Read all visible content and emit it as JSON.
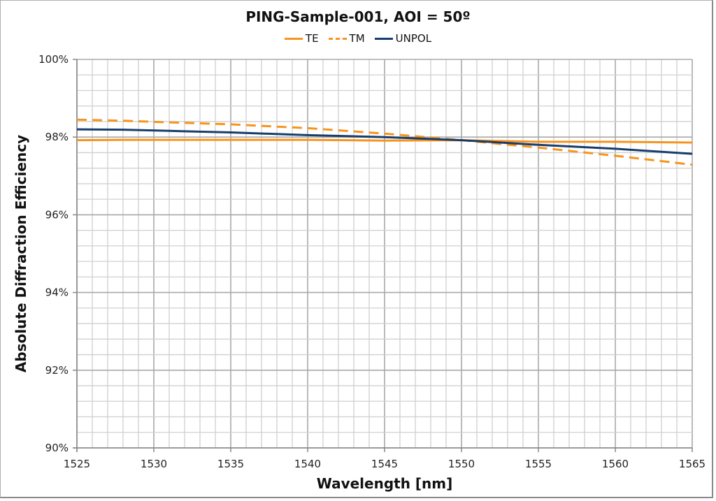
{
  "chart_data": {
    "type": "line",
    "title": "PING-Sample-001, AOI = 50º",
    "xlabel": "Wavelength [nm]",
    "ylabel": "Absolute Diffraction Efficiency",
    "xlim": [
      1525,
      1565
    ],
    "ylim": [
      90,
      100
    ],
    "x_ticks": [
      1525,
      1530,
      1535,
      1540,
      1545,
      1550,
      1555,
      1560,
      1565
    ],
    "y_ticks": [
      "90%",
      "92%",
      "94%",
      "96%",
      "98%",
      "100%"
    ],
    "grid": true,
    "legend_position": "top",
    "x": [
      1525,
      1528,
      1531,
      1535,
      1540,
      1545,
      1550,
      1555,
      1560,
      1565
    ],
    "series": [
      {
        "name": "TE",
        "color": "#F7941D",
        "style": "solid",
        "values": [
          97.92,
          97.93,
          97.93,
          97.93,
          97.93,
          97.91,
          97.92,
          97.88,
          97.88,
          97.86
        ]
      },
      {
        "name": "TM",
        "color": "#F7941D",
        "style": "dashed",
        "values": [
          98.45,
          98.42,
          98.38,
          98.33,
          98.23,
          98.09,
          97.92,
          97.73,
          97.52,
          97.29
        ]
      },
      {
        "name": "UNPOL",
        "color": "#173D6E",
        "style": "solid",
        "values": [
          98.2,
          98.19,
          98.16,
          98.12,
          98.05,
          98.0,
          97.92,
          97.8,
          97.7,
          97.57
        ]
      }
    ]
  }
}
